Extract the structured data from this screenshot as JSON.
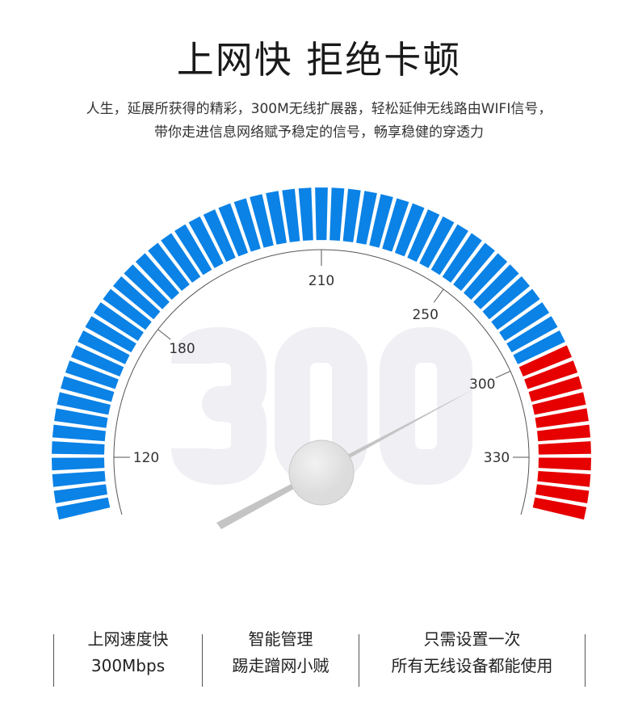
{
  "header": {
    "title": "上网快 拒绝卡顿",
    "subtitle_lines": [
      "人生，延展所获得的精彩，300M无线扩展器，轻松延伸无线路由WIFI信号，",
      "带你走进信息网络赋予稳定的信号，畅享稳健的穿透力"
    ]
  },
  "gauge": {
    "watermark": "300",
    "ticks": [
      "120",
      "180",
      "210",
      "250",
      "300",
      "330"
    ],
    "colors": {
      "normal": "#0a82e6",
      "high": "#e60000",
      "watermark": "#efeff4",
      "needle": "#c4c4c4"
    }
  },
  "features": [
    {
      "line1": "上网速度快",
      "line2": "300Mbps"
    },
    {
      "line1": "智能管理",
      "line2": "踢走蹭网小贼"
    },
    {
      "line1": "只需设置一次",
      "line2": "所有无线设备都能使用"
    }
  ]
}
